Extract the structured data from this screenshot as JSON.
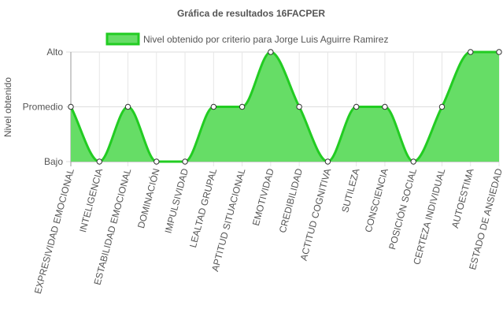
{
  "chart_data": {
    "type": "area",
    "title": "Gráfica de resultados 16FACPER",
    "ylabel": "Nivel obtenido",
    "xlabel": "",
    "y_levels": [
      {
        "label": "Bajo",
        "value": 1
      },
      {
        "label": "Promedio",
        "value": 2
      },
      {
        "label": "Alto",
        "value": 3
      }
    ],
    "ylim": [
      1,
      3
    ],
    "grid": true,
    "legend_position": "top",
    "categories": [
      "EXPRESIVIDAD EMOCIONAL",
      "INTELIGENCIA",
      "ESTABILIDAD EMOCIONAL",
      "DOMINACIÓN",
      "IMPULSIVIDAD",
      "LEALTAD GRUPAL",
      "APTITUD SITUACIONAL",
      "EMOTIVIDAD",
      "CREDIBILIDAD",
      "ACTITUD COGNITIVA",
      "SUTILEZA",
      "CONSCIENCIA",
      "POSICIÓN SOCIAL",
      "CERTEZA INDIVIDUAL",
      "AUTOESTIMA",
      "ESTADO DE ANSIEDAD"
    ],
    "series": [
      {
        "name": "Nivel obtenido por criterio para Jorge Luis Aguirre Ramirez",
        "values": [
          2,
          1,
          2,
          1,
          1,
          2,
          2,
          3,
          2,
          1,
          2,
          2,
          1,
          2,
          3,
          3
        ],
        "fill_color": "#66dd66",
        "line_color": "#22cc22"
      }
    ]
  }
}
